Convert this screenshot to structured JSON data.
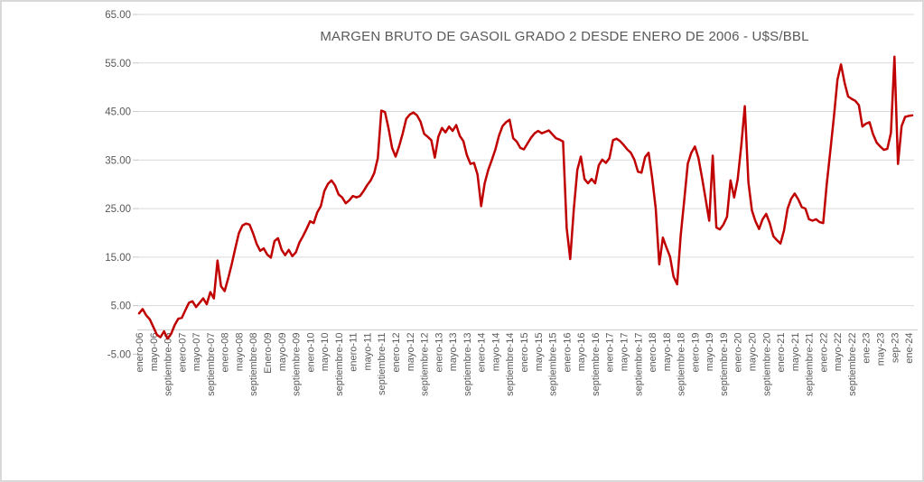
{
  "chart_data": {
    "type": "line",
    "title": "MARGEN BRUTO DE GASOIL GRADO 2 DESDE ENERO DE 2006 - U$S/BBL",
    "frequency": "monthly",
    "legend": "none",
    "grid": true,
    "category_axis_crosses_at": 0,
    "y_axis": {
      "min": -5,
      "max": 65,
      "major_unit": 10,
      "tick_labels": [
        "65.00",
        "55.00",
        "45.00",
        "35.00",
        "25.00",
        "15.00",
        "5.00",
        "-5.00"
      ]
    },
    "x_axis": {
      "start": "enero-06",
      "tick_every_n_months": 4,
      "tick_labels": [
        "enero-06",
        "mayo-06",
        "septiembre-06",
        "enero-07",
        "mayo-07",
        "septiembre-07",
        "enero-08",
        "mayo-08",
        "septiembre-08",
        "Enero-09",
        "mayo-09",
        "septiembre-09",
        "enero-10",
        "mayo-10",
        "septiembre-10",
        "enero-11",
        "mayo-11",
        "septiembre-11",
        "enero-12",
        "mayo-12",
        "septiembre-12",
        "enero-13",
        "mayo-13",
        "septiembre-13",
        "enero-14",
        "mayo-14",
        "septiembre-14",
        "enero-15",
        "mayo-15",
        "septiembre-15",
        "enero-16",
        "mayo-16",
        "septiembre-16",
        "enero-17",
        "mayo-17",
        "septiembre-17",
        "enero-18",
        "mayo-18",
        "septiembre-18",
        "enero-19",
        "mayo-19",
        "septiembre-19",
        "enero-20",
        "mayo-20",
        "septiembre-20",
        "enero-21",
        "mayo-21",
        "septiembre-21",
        "enero-22",
        "mayo-22",
        "septiembre-22",
        "ene-23",
        "may-23",
        "sep-23",
        "ene-24"
      ]
    },
    "values": [
      3.4,
      4.3,
      3.0,
      2.2,
      0.6,
      -1.0,
      -1.5,
      -0.3,
      -1.8,
      -0.8,
      1.0,
      2.3,
      2.5,
      4.1,
      5.6,
      5.9,
      4.7,
      5.6,
      6.5,
      5.3,
      7.8,
      6.5,
      14.3,
      9.0,
      8.0,
      10.6,
      13.5,
      16.8,
      19.9,
      21.5,
      21.9,
      21.7,
      19.9,
      17.7,
      16.3,
      16.8,
      15.5,
      14.9,
      18.3,
      18.9,
      16.5,
      15.4,
      16.5,
      15.2,
      16.0,
      18.0,
      19.3,
      20.8,
      22.4,
      22.0,
      24.2,
      25.5,
      28.6,
      30.1,
      30.8,
      29.8,
      27.9,
      27.3,
      26.1,
      26.7,
      27.6,
      27.3,
      27.6,
      28.6,
      29.8,
      30.8,
      32.3,
      35.4,
      45.2,
      44.9,
      41.6,
      37.5,
      35.7,
      37.9,
      40.5,
      43.5,
      44.4,
      44.8,
      44.2,
      42.9,
      40.4,
      39.8,
      39.1,
      35.5,
      39.8,
      41.6,
      40.7,
      41.9,
      41.0,
      42.2,
      40.0,
      38.9,
      36.0,
      34.2,
      34.4,
      32.0,
      25.5,
      30.2,
      33.0,
      35.0,
      37.2,
      40.0,
      42.0,
      42.8,
      43.3,
      39.5,
      38.8,
      37.5,
      37.2,
      38.4,
      39.6,
      40.5,
      41.0,
      40.5,
      40.8,
      41.1,
      40.3,
      39.5,
      39.2,
      38.8,
      21.0,
      14.6,
      24.9,
      33.0,
      35.7,
      31.1,
      30.2,
      31.1,
      30.2,
      33.9,
      35.1,
      34.4,
      35.4,
      39.1,
      39.4,
      38.9,
      38.1,
      37.2,
      36.5,
      35.1,
      32.6,
      32.4,
      35.6,
      36.5,
      31.4,
      25.0,
      13.5,
      19.0,
      17.0,
      15.1,
      11.0,
      9.4,
      19.4,
      26.8,
      34.3,
      36.5,
      37.8,
      35.4,
      31.3,
      27.0,
      22.5,
      35.9,
      21.1,
      20.7,
      21.7,
      23.3,
      30.8,
      27.3,
      31.0,
      38.0,
      46.1,
      30.4,
      24.6,
      22.4,
      20.8,
      22.8,
      23.9,
      22.0,
      19.3,
      18.5,
      17.8,
      20.5,
      25.0,
      27.0,
      28.1,
      26.9,
      25.3,
      25.0,
      22.8,
      22.5,
      22.8,
      22.2,
      22.0,
      30.0,
      36.9,
      43.8,
      51.6,
      54.7,
      50.9,
      48.1,
      47.6,
      47.2,
      46.3,
      41.9,
      42.5,
      42.8,
      40.3,
      38.6,
      37.8,
      37.1,
      37.3,
      40.6,
      56.3,
      34.2,
      42.0,
      43.9,
      44.1,
      44.2
    ],
    "colors": {
      "line": "#C00000",
      "gridline": "#D9D9D9",
      "axis_line": "#D2D2D2",
      "tick_mark": "#C6C6C6",
      "axis_text": "#595959",
      "title_text": "#595959",
      "background": "#FFFFFF",
      "frame_border": "#D9D9D9"
    }
  }
}
